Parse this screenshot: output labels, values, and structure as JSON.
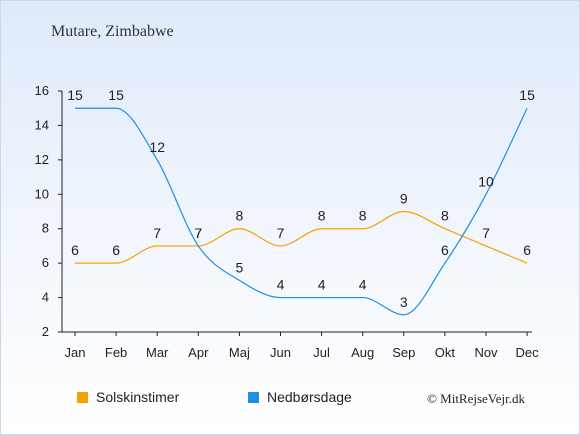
{
  "title": "Mutare, Zimbabwe",
  "credit": "© MitRejseVejr.dk",
  "chart_data": {
    "type": "line",
    "categories": [
      "Jan",
      "Feb",
      "Mar",
      "Apr",
      "Maj",
      "Jun",
      "Jul",
      "Aug",
      "Sep",
      "Okt",
      "Nov",
      "Dec"
    ],
    "ylim": [
      2,
      16
    ],
    "yticks": [
      2,
      4,
      6,
      8,
      10,
      12,
      14,
      16
    ],
    "grid": false,
    "legend_position": "bottom",
    "series": [
      {
        "name": "Solskinstimer",
        "color": "#f5a200",
        "values": [
          6,
          6,
          7,
          7,
          8,
          7,
          8,
          8,
          9,
          8,
          7,
          6
        ]
      },
      {
        "name": "Nedbørsdage",
        "color": "#1f8fe3",
        "values": [
          15,
          15,
          12,
          7,
          5,
          4,
          4,
          4,
          3,
          6,
          10,
          15
        ]
      }
    ]
  }
}
